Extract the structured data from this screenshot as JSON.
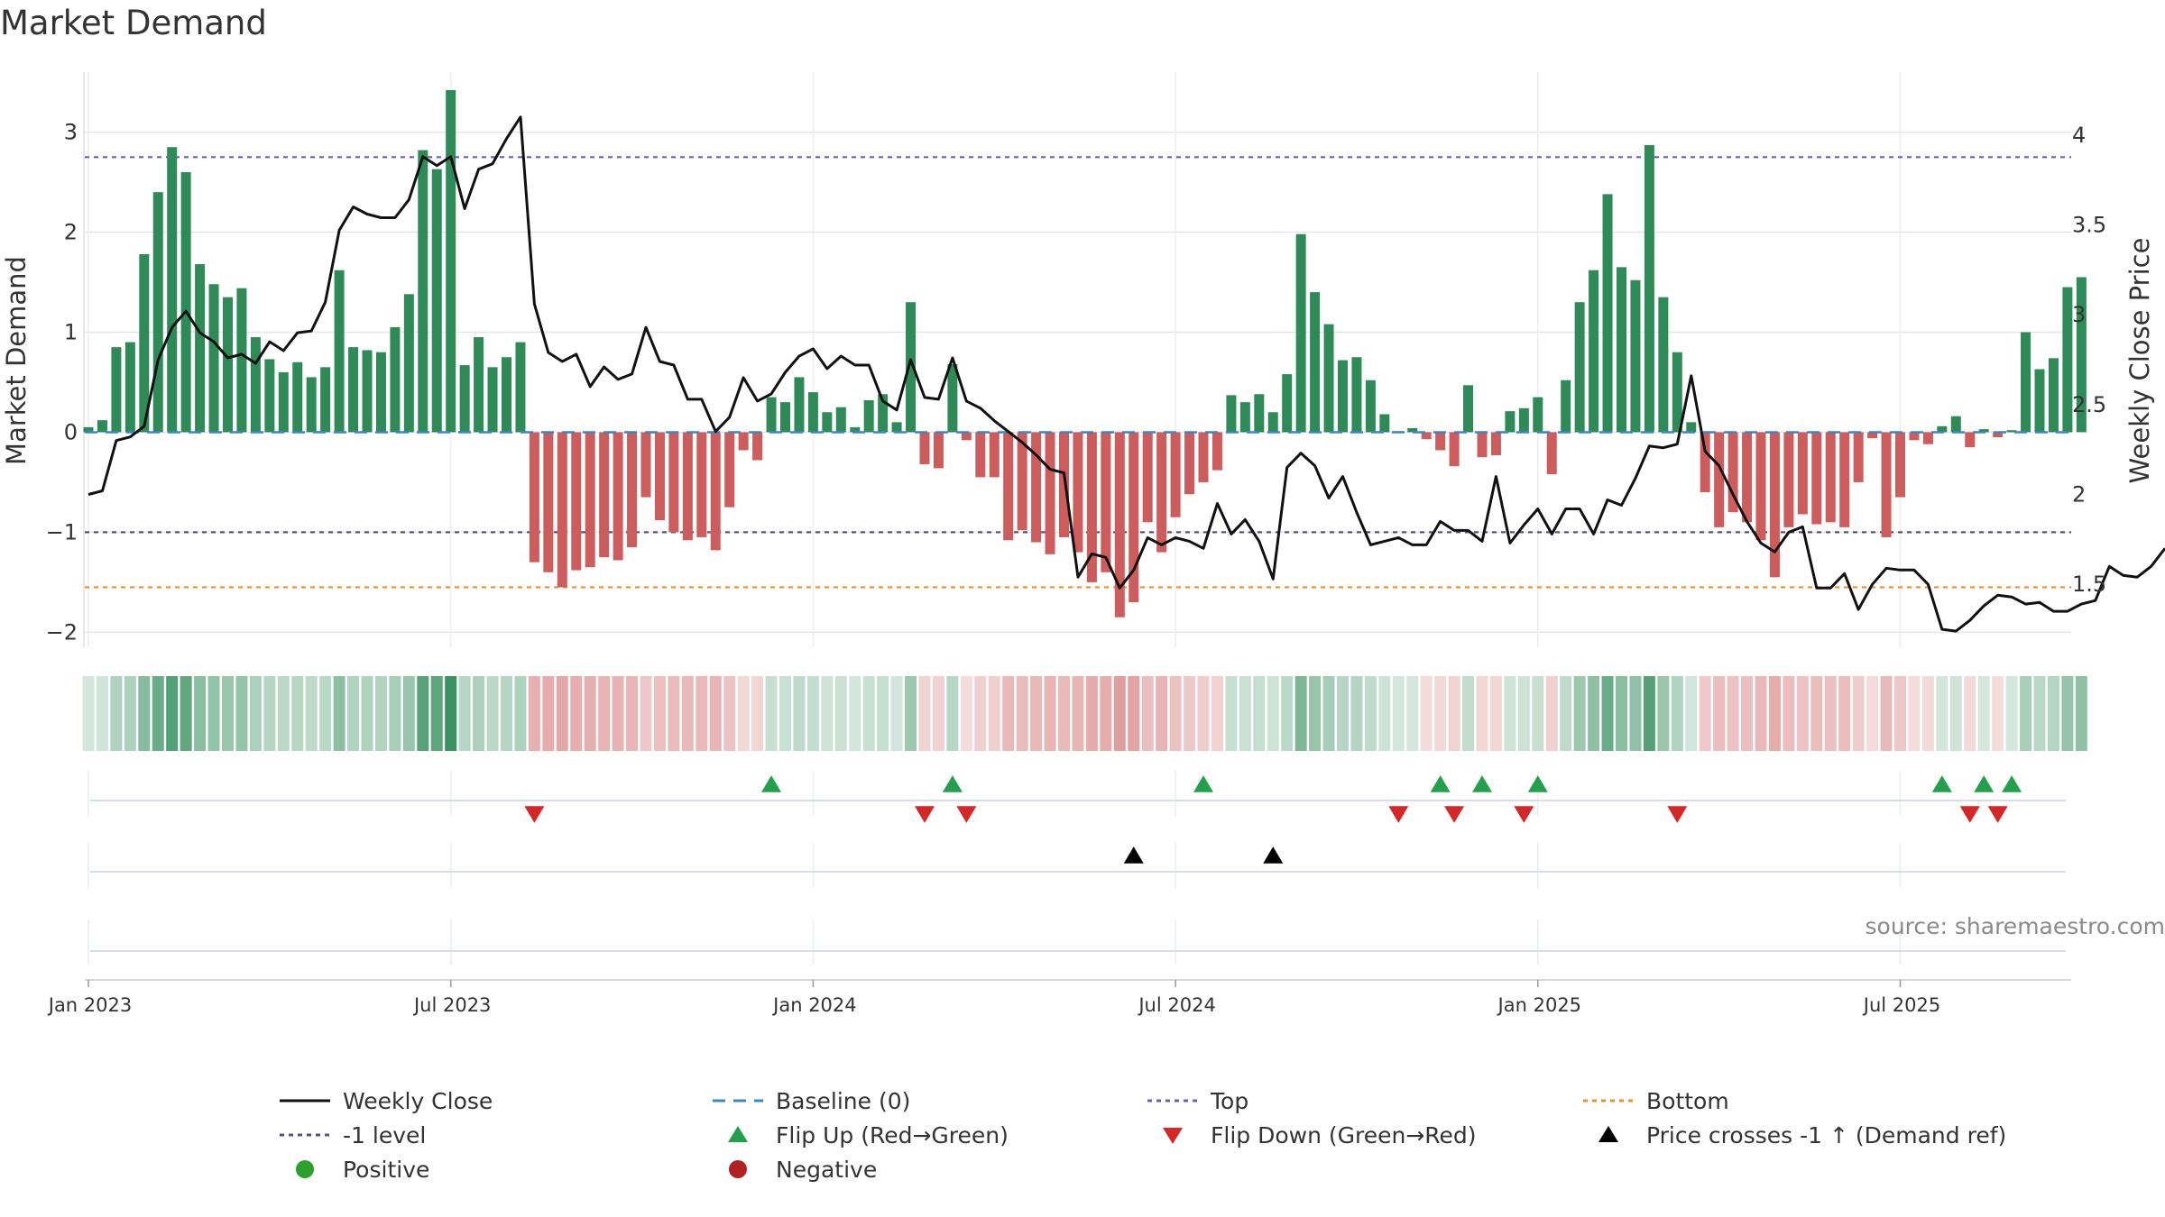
{
  "chart_data": {
    "type": "bar",
    "title": "Market Demand",
    "ylabel": "Market Demand",
    "y2label": "Weekly Close Price",
    "ylim": [
      -2.15,
      3.6
    ],
    "y2lim": [
      1.15,
      4.35
    ],
    "yticks": [
      3,
      2,
      1,
      0,
      -1,
      -2
    ],
    "ytick_labels": [
      "3",
      "2",
      "1",
      "0",
      "−1",
      "−2"
    ],
    "y2ticks": [
      4,
      3.5,
      3,
      2.5,
      2,
      1.5
    ],
    "y2tick_labels": [
      "4",
      "3.5",
      "3",
      "2.5",
      "2",
      "1.5"
    ],
    "x_start": 0,
    "x_label_weeks": [
      0,
      26,
      52,
      78,
      104,
      130
    ],
    "x_labels": [
      "Jan 2023",
      "Jul 2023",
      "Jan 2024",
      "Jul 2024",
      "Jan 2025",
      "Jul 2025"
    ],
    "reference_lines": {
      "top": 2.75,
      "minus_one": -1.0,
      "bottom": -1.55,
      "baseline": 0
    },
    "demand": [
      0.05,
      0.12,
      0.85,
      0.9,
      1.78,
      2.4,
      2.85,
      2.6,
      1.68,
      1.48,
      1.35,
      1.44,
      0.95,
      0.73,
      0.6,
      0.7,
      0.55,
      0.65,
      1.62,
      0.85,
      0.82,
      0.8,
      1.05,
      1.38,
      2.82,
      2.63,
      3.42,
      0.67,
      0.95,
      0.65,
      0.75,
      0.9,
      -1.3,
      -1.4,
      -1.55,
      -1.38,
      -1.35,
      -1.25,
      -1.28,
      -1.15,
      -0.65,
      -0.88,
      -1.0,
      -1.08,
      -1.05,
      -1.18,
      -0.75,
      -0.18,
      -0.28,
      0.35,
      0.3,
      0.55,
      0.4,
      0.2,
      0.25,
      0.05,
      0.32,
      0.38,
      0.1,
      1.3,
      -0.32,
      -0.36,
      0.68,
      -0.08,
      -0.45,
      -0.45,
      -1.08,
      -0.98,
      -1.1,
      -1.22,
      -1.05,
      -1.2,
      -1.5,
      -1.4,
      -1.85,
      -1.7,
      -0.9,
      -1.2,
      -0.85,
      -0.62,
      -0.5,
      -0.38,
      0.37,
      0.3,
      0.38,
      0.2,
      0.58,
      1.98,
      1.4,
      1.08,
      0.72,
      0.75,
      0.52,
      0.18,
      0.01,
      0.04,
      -0.07,
      -0.18,
      -0.34,
      0.47,
      -0.25,
      -0.23,
      0.21,
      0.24,
      0.35,
      -0.42,
      0.52,
      1.3,
      1.62,
      2.38,
      1.65,
      1.52,
      2.87,
      1.35,
      0.8,
      0.1,
      -0.6,
      -0.95,
      -0.8,
      -0.9,
      -1.08,
      -1.45,
      -0.95,
      -0.82,
      -0.92,
      -0.9,
      -0.95,
      -0.5,
      -0.06,
      -1.05,
      -0.65,
      -0.08,
      -0.12,
      0.06,
      0.16,
      -0.15,
      0.03,
      -0.05,
      0.02,
      1.0,
      0.63,
      0.74,
      1.45,
      1.55
    ],
    "price": [
      2.0,
      2.02,
      2.3,
      2.32,
      2.38,
      2.75,
      2.93,
      3.02,
      2.9,
      2.85,
      2.76,
      2.78,
      2.73,
      2.85,
      2.8,
      2.9,
      2.91,
      3.07,
      3.47,
      3.6,
      3.56,
      3.54,
      3.54,
      3.64,
      3.88,
      3.83,
      3.88,
      3.59,
      3.81,
      3.84,
      3.98,
      4.1,
      3.06,
      2.79,
      2.74,
      2.78,
      2.6,
      2.71,
      2.64,
      2.67,
      2.93,
      2.74,
      2.72,
      2.53,
      2.53,
      2.35,
      2.43,
      2.65,
      2.52,
      2.56,
      2.68,
      2.77,
      2.81,
      2.7,
      2.77,
      2.72,
      2.72,
      2.52,
      2.47,
      2.75,
      2.54,
      2.53,
      2.76,
      2.52,
      2.48,
      2.41,
      2.35,
      2.29,
      2.22,
      2.14,
      2.12,
      1.54,
      1.67,
      1.65,
      1.48,
      1.58,
      1.76,
      1.72,
      1.76,
      1.74,
      1.7,
      1.95,
      1.78,
      1.86,
      1.74,
      1.53,
      2.15,
      2.23,
      2.16,
      1.98,
      2.1,
      1.9,
      1.72,
      1.74,
      1.76,
      1.72,
      1.72,
      1.85,
      1.8,
      1.8,
      1.74,
      2.1,
      1.73,
      1.83,
      1.92,
      1.78,
      1.92,
      1.92,
      1.78,
      1.97,
      1.94,
      2.09,
      2.27,
      2.26,
      2.28,
      2.66,
      2.24,
      2.16,
      2.0,
      1.85,
      1.73,
      1.68,
      1.79,
      1.82,
      1.48,
      1.48,
      1.56,
      1.36,
      1.5,
      1.59,
      1.58,
      1.58,
      1.5,
      1.25,
      1.24,
      1.3,
      1.38,
      1.44,
      1.43,
      1.39,
      1.4,
      1.35,
      1.35,
      1.39,
      1.41,
      1.6,
      1.55,
      1.54,
      1.6,
      1.7
    ],
    "flip_up_weeks": [
      49,
      62,
      80,
      97,
      100,
      104,
      133,
      136,
      138
    ],
    "flip_down_weeks": [
      32,
      60,
      63,
      94,
      98,
      103,
      114,
      135,
      137
    ],
    "price_cross_weeks": [
      75,
      85
    ],
    "legend": [
      {
        "label": "Weekly Close",
        "symbol": "line",
        "color": "#111111"
      },
      {
        "label": "Baseline (0)",
        "symbol": "dash",
        "color": "#3a86c8"
      },
      {
        "label": "Top",
        "symbol": "dot",
        "color": "#6b5fb5"
      },
      {
        "label": "Bottom",
        "symbol": "dot",
        "color": "#e8912d"
      },
      {
        "label": "-1 level",
        "symbol": "dot",
        "color": "#555577"
      },
      {
        "label": "Flip Up (Red→Green)",
        "symbol": "tri-up",
        "color": "#22a04b"
      },
      {
        "label": "Flip Down (Green→Red)",
        "symbol": "tri-down",
        "color": "#d62728"
      },
      {
        "label": "Price crosses -1 ↑ (Demand ref)",
        "symbol": "tri-up",
        "color": "#000000"
      },
      {
        "label": "Positive",
        "symbol": "circle",
        "color": "#2ca02c"
      },
      {
        "label": "Negative",
        "symbol": "circle",
        "color": "#b22222"
      }
    ],
    "colors": {
      "positive": "#2e8b57",
      "negative": "#cd5c5c",
      "price": "#111111",
      "grid": "#e6e6e6"
    }
  },
  "source_text": "source: sharemaestro.com"
}
